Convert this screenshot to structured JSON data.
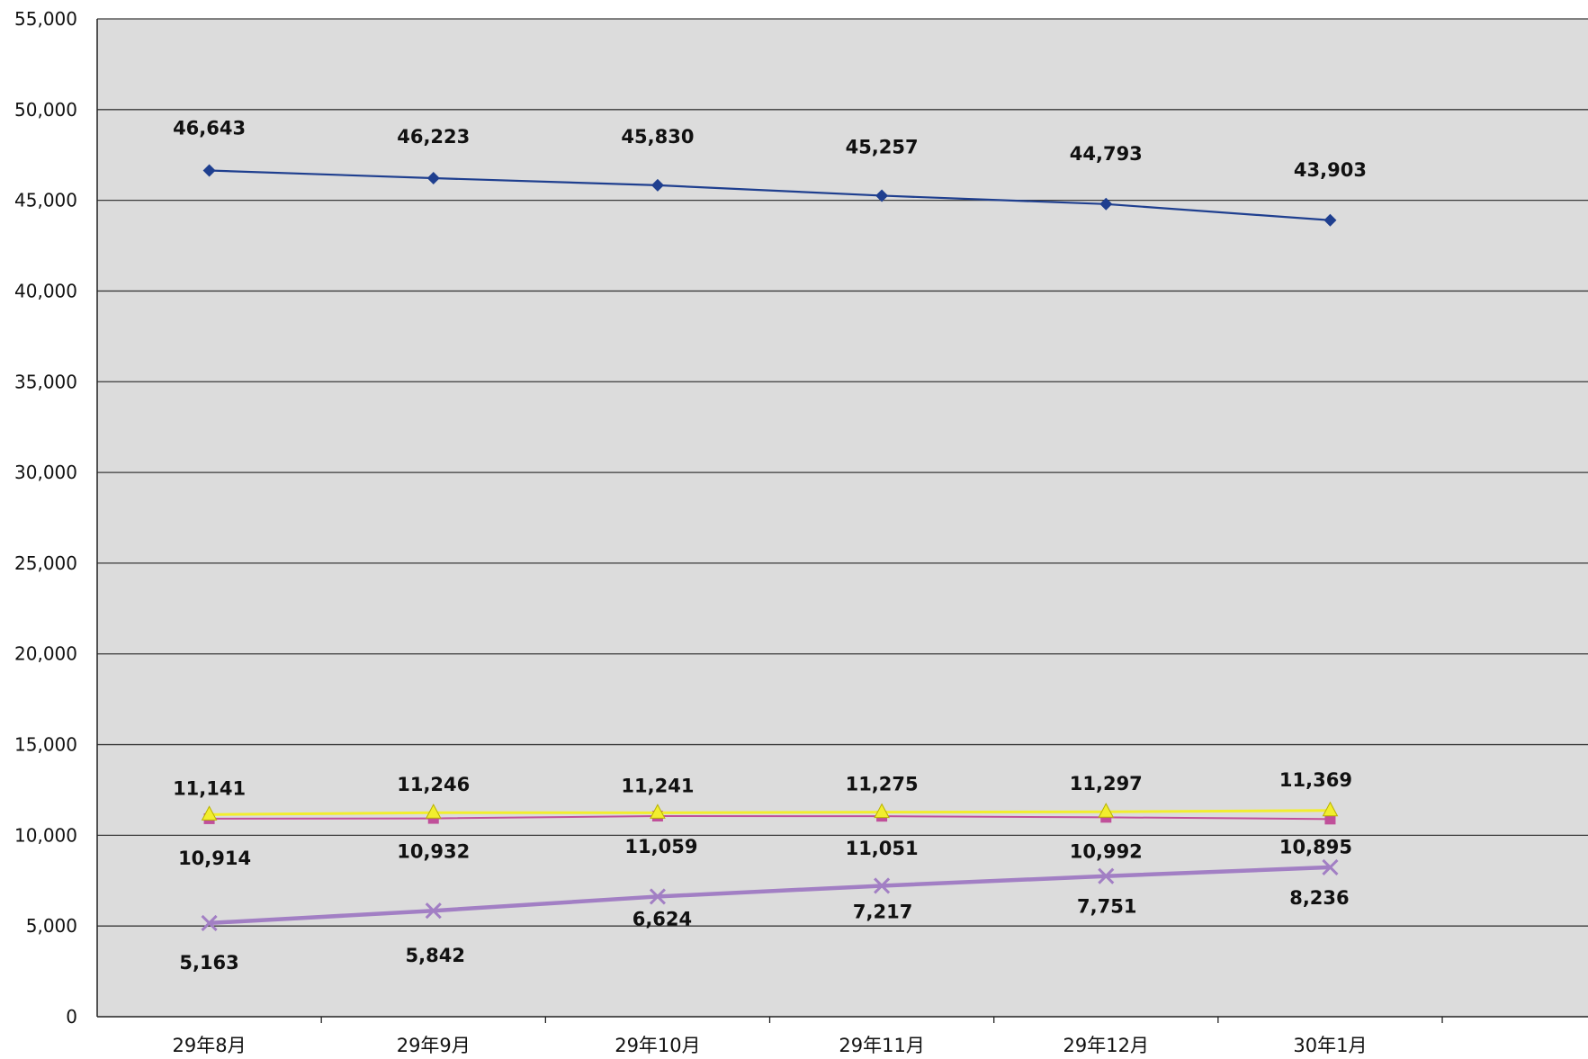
{
  "chart_data": {
    "type": "line",
    "title": "",
    "xlabel": "",
    "ylabel": "",
    "ylim": [
      0,
      55000
    ],
    "yticks": [
      0,
      5000,
      10000,
      15000,
      20000,
      25000,
      30000,
      35000,
      40000,
      45000,
      50000,
      55000
    ],
    "ytick_labels": [
      "0",
      "5,000",
      "10,000",
      "15,000",
      "20,000",
      "25,000",
      "30,000",
      "35,000",
      "40,000",
      "45,000",
      "50,000",
      "55,000"
    ],
    "categories": [
      "29年8月",
      "29年9月",
      "29年10月",
      "29年11月",
      "29年12月",
      "30年1月"
    ],
    "grid": true,
    "legend": "none",
    "series": [
      {
        "values": [
          46643,
          46223,
          45830,
          45257,
          44793,
          43903
        ],
        "labels": [
          "46,643",
          "46,223",
          "45,830",
          "45,257",
          "44,793",
          "43,903"
        ],
        "color": "#1f3f8f",
        "marker": "diamond"
      },
      {
        "values": [
          11141,
          11246,
          11241,
          11275,
          11297,
          11369
        ],
        "labels": [
          "11,141",
          "11,246",
          "11,241",
          "11,275",
          "11,297",
          "11,369"
        ],
        "color": "#f2ee2e",
        "marker": "triangle"
      },
      {
        "values": [
          10914,
          10932,
          11059,
          11051,
          10992,
          10895
        ],
        "labels": [
          "10,914",
          "10,932",
          "11,059",
          "11,051",
          "10,992",
          "10,895"
        ],
        "color": "#c0509a",
        "marker": "square"
      },
      {
        "values": [
          5163,
          5842,
          6624,
          7217,
          7751,
          8236
        ],
        "labels": [
          "5,163",
          "5,842",
          "6,624",
          "7,217",
          "7,751",
          "8,236"
        ],
        "color": "#a27fc4",
        "marker": "x"
      }
    ]
  }
}
